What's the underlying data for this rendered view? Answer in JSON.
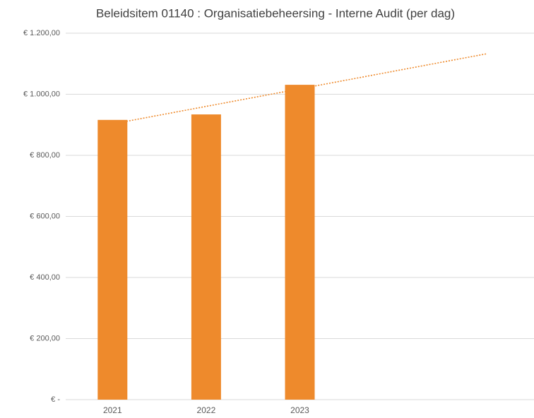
{
  "chart_data": {
    "type": "bar",
    "title": "Beleidsitem 01140 : Organisatiebeheersing - Interne Audit (per dag)",
    "categories": [
      "2021",
      "2022",
      "2023",
      null,
      null
    ],
    "values": [
      916,
      934,
      1031,
      null,
      null
    ],
    "color": "#ee8a2c",
    "ylim": [
      0,
      1200
    ],
    "yticks": [
      {
        "value": 0,
        "label": "€ -"
      },
      {
        "value": 200,
        "label": "€ 200,00"
      },
      {
        "value": 400,
        "label": "€ 400,00"
      },
      {
        "value": 600,
        "label": "€ 600,00"
      },
      {
        "value": 800,
        "label": "€ 800,00"
      },
      {
        "value": 1000,
        "label": "€ 1.000,00"
      },
      {
        "value": 1200,
        "label": "€ 1.200,00"
      }
    ],
    "grid": true,
    "trendline": {
      "type": "linear",
      "color": "#ee8a2c"
    }
  }
}
